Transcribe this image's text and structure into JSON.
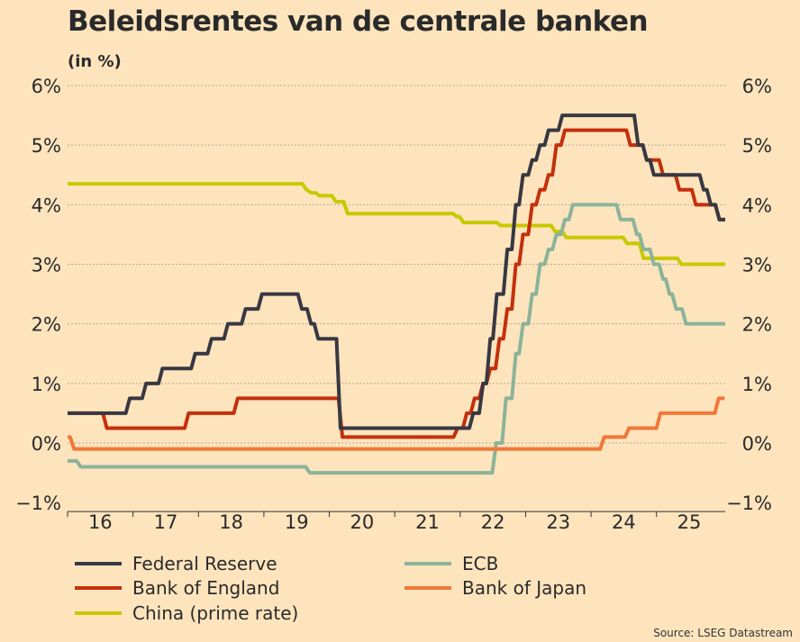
{
  "chart_data": {
    "type": "line",
    "title": "Beleidsrentes van de centrale banken",
    "unit_label": "(in %)",
    "source": "Source: LSEG Datastream",
    "xlim": [
      2016.0,
      2026.05
    ],
    "ylim": [
      -1,
      6
    ],
    "yticks": [
      -1,
      0,
      1,
      2,
      3,
      4,
      5,
      6
    ],
    "ytick_labels": [
      "−1%",
      "0%",
      "1%",
      "2%",
      "3%",
      "4%",
      "5%",
      "6%"
    ],
    "xtick_labels": [
      "16",
      "17",
      "18",
      "19",
      "20",
      "21",
      "22",
      "23",
      "24",
      "25"
    ],
    "xtick_years": [
      2016,
      2017,
      2018,
      2019,
      2020,
      2021,
      2022,
      2023,
      2024,
      2025
    ],
    "grid": true,
    "legend_placement": "bottom",
    "series": [
      {
        "name": "Federal Reserve",
        "color": "#383842",
        "steps": [
          [
            2016.0,
            0.5
          ],
          [
            2016.95,
            0.75
          ],
          [
            2017.2,
            1.0
          ],
          [
            2017.45,
            1.25
          ],
          [
            2017.95,
            1.5
          ],
          [
            2018.2,
            1.75
          ],
          [
            2018.45,
            2.0
          ],
          [
            2018.72,
            2.25
          ],
          [
            2018.97,
            2.5
          ],
          [
            2019.58,
            2.25
          ],
          [
            2019.72,
            2.0
          ],
          [
            2019.83,
            1.75
          ],
          [
            2020.17,
            0.25
          ],
          [
            2022.2,
            0.5
          ],
          [
            2022.35,
            1.0
          ],
          [
            2022.46,
            1.75
          ],
          [
            2022.56,
            2.5
          ],
          [
            2022.72,
            3.25
          ],
          [
            2022.85,
            4.0
          ],
          [
            2022.96,
            4.5
          ],
          [
            2023.1,
            4.75
          ],
          [
            2023.22,
            5.0
          ],
          [
            2023.35,
            5.25
          ],
          [
            2023.56,
            5.5
          ],
          [
            2024.72,
            5.0
          ],
          [
            2024.85,
            4.75
          ],
          [
            2024.96,
            4.5
          ],
          [
            2025.72,
            4.25
          ],
          [
            2025.83,
            4.0
          ],
          [
            2025.96,
            3.75
          ]
        ]
      },
      {
        "name": "Bank of England",
        "color": "#c4300c",
        "steps": [
          [
            2016.0,
            0.5
          ],
          [
            2016.6,
            0.25
          ],
          [
            2017.85,
            0.5
          ],
          [
            2018.6,
            0.75
          ],
          [
            2020.2,
            0.1
          ],
          [
            2021.96,
            0.25
          ],
          [
            2022.1,
            0.5
          ],
          [
            2022.22,
            0.75
          ],
          [
            2022.35,
            1.0
          ],
          [
            2022.46,
            1.25
          ],
          [
            2022.6,
            1.75
          ],
          [
            2022.72,
            2.25
          ],
          [
            2022.85,
            3.0
          ],
          [
            2022.96,
            3.5
          ],
          [
            2023.1,
            4.0
          ],
          [
            2023.22,
            4.25
          ],
          [
            2023.35,
            4.5
          ],
          [
            2023.47,
            5.0
          ],
          [
            2023.6,
            5.25
          ],
          [
            2024.6,
            5.0
          ],
          [
            2024.85,
            4.75
          ],
          [
            2025.1,
            4.5
          ],
          [
            2025.35,
            4.25
          ],
          [
            2025.6,
            4.0
          ],
          [
            2025.96,
            3.75
          ]
        ]
      },
      {
        "name": "ECB",
        "color": "#8bb39a",
        "steps": [
          [
            2016.0,
            -0.3
          ],
          [
            2016.2,
            -0.4
          ],
          [
            2019.7,
            -0.5
          ],
          [
            2022.55,
            0.0
          ],
          [
            2022.7,
            0.75
          ],
          [
            2022.85,
            1.5
          ],
          [
            2022.96,
            2.0
          ],
          [
            2023.1,
            2.5
          ],
          [
            2023.22,
            3.0
          ],
          [
            2023.35,
            3.25
          ],
          [
            2023.47,
            3.5
          ],
          [
            2023.6,
            3.75
          ],
          [
            2023.72,
            4.0
          ],
          [
            2024.45,
            3.75
          ],
          [
            2024.7,
            3.5
          ],
          [
            2024.8,
            3.25
          ],
          [
            2024.96,
            3.0
          ],
          [
            2025.1,
            2.75
          ],
          [
            2025.2,
            2.5
          ],
          [
            2025.3,
            2.25
          ],
          [
            2025.45,
            2.0
          ],
          [
            2026.05,
            2.0
          ]
        ]
      },
      {
        "name": "Bank of Japan",
        "color": "#f07838",
        "steps": [
          [
            2016.0,
            0.1
          ],
          [
            2016.1,
            -0.1
          ],
          [
            2024.2,
            0.1
          ],
          [
            2024.58,
            0.25
          ],
          [
            2025.06,
            0.5
          ],
          [
            2025.95,
            0.75
          ]
        ]
      },
      {
        "name": "China (prime rate)",
        "color": "#c9c800",
        "steps": [
          [
            2016.0,
            4.35
          ],
          [
            2019.65,
            4.25
          ],
          [
            2019.72,
            4.2
          ],
          [
            2019.85,
            4.15
          ],
          [
            2020.1,
            4.05
          ],
          [
            2020.28,
            3.85
          ],
          [
            2021.95,
            3.8
          ],
          [
            2022.05,
            3.7
          ],
          [
            2022.62,
            3.65
          ],
          [
            2023.45,
            3.55
          ],
          [
            2023.62,
            3.45
          ],
          [
            2024.55,
            3.35
          ],
          [
            2024.8,
            3.1
          ],
          [
            2025.38,
            3.0
          ],
          [
            2026.05,
            3.0
          ]
        ]
      }
    ]
  }
}
